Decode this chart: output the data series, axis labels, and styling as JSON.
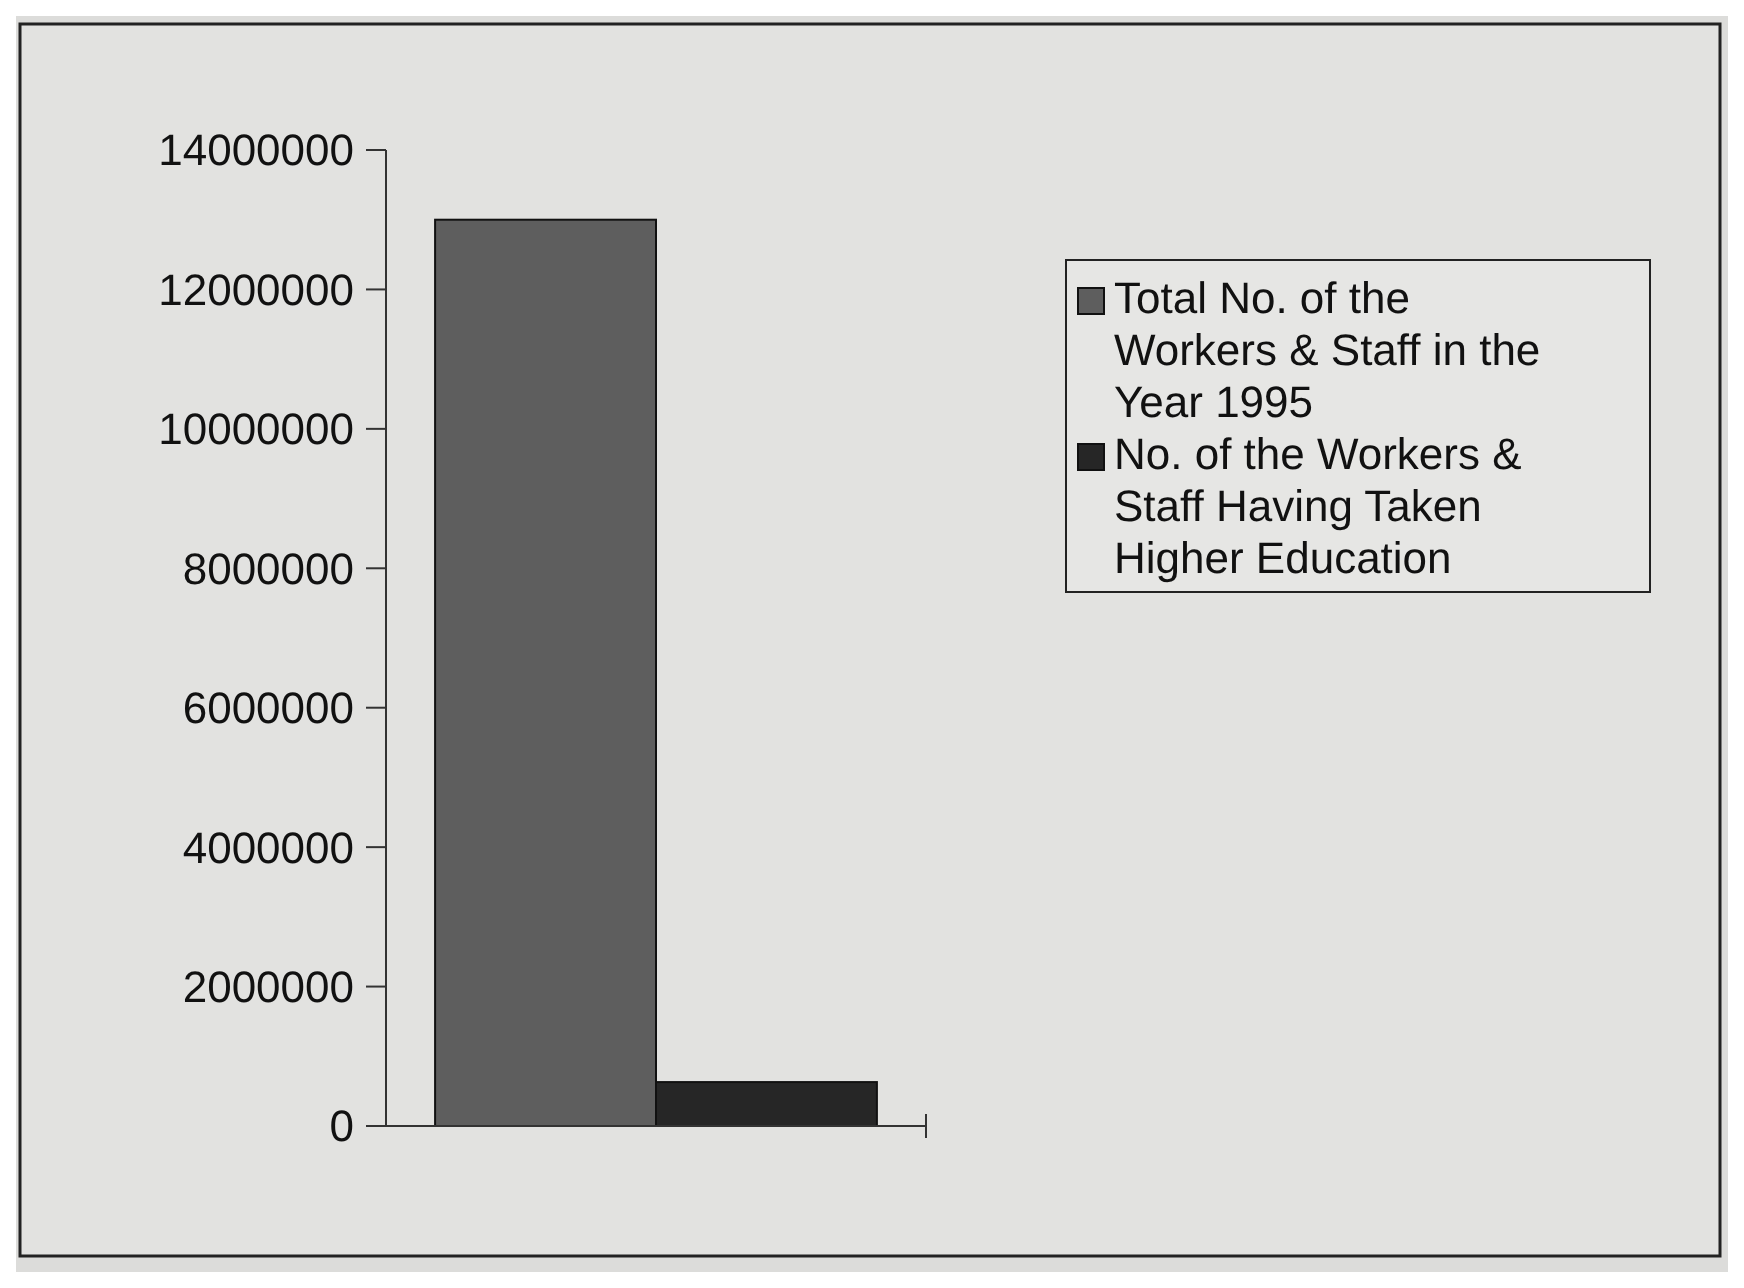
{
  "chart_data": {
    "type": "bar",
    "categories": [
      null
    ],
    "series": [
      {
        "name": "Total No. of the Workers & Staff in the Year 1995",
        "color": "#5e5e5e",
        "values": [
          13000000
        ]
      },
      {
        "name": "No. of the Workers & Staff Having Taken Higher Education",
        "color": "#262626",
        "values": [
          630000
        ]
      }
    ],
    "ylim": [
      0,
      14000000
    ],
    "yticks": [
      0,
      2000000,
      4000000,
      6000000,
      8000000,
      10000000,
      12000000,
      14000000
    ],
    "legend": "top right",
    "grid": false
  }
}
